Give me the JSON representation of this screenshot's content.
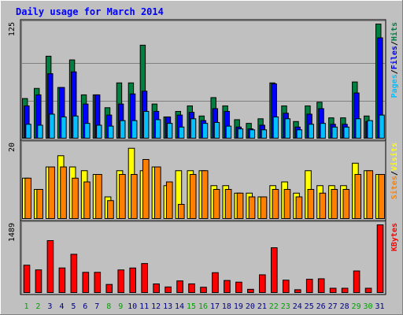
{
  "chart_data": {
    "type": "bar",
    "title": "Daily usage for March 2014",
    "categories": [
      "1",
      "2",
      "3",
      "4",
      "5",
      "6",
      "7",
      "8",
      "9",
      "10",
      "11",
      "12",
      "13",
      "14",
      "15",
      "16",
      "17",
      "18",
      "19",
      "20",
      "21",
      "22",
      "23",
      "24",
      "25",
      "26",
      "27",
      "28",
      "29",
      "30",
      "31"
    ],
    "weekend_days": [
      "1",
      "2",
      "8",
      "9",
      "15",
      "16",
      "22",
      "23",
      "29",
      "30"
    ],
    "panels": [
      {
        "id": "top",
        "ymax_label": "125",
        "ymax": 125,
        "right_label": [
          "Pages",
          "/",
          "Files",
          "/",
          "Hits"
        ],
        "right_label_colors": [
          "#00c0ff",
          "#000000",
          "#0000ff",
          "#000000",
          "#008040"
        ],
        "series": [
          {
            "name": "Hits",
            "color": "#008040",
            "values": [
              44,
              55,
              90,
              56,
              86,
              48,
              48,
              34,
              61,
              61,
              102,
              38,
              24,
              30,
              36,
              25,
              45,
              36,
              21,
              17,
              22,
              61,
              36,
              19,
              36,
              40,
              23,
              23,
              62,
              25,
              125
            ]
          },
          {
            "name": "Files",
            "color": "#0000ff",
            "values": [
              36,
              48,
              71,
              56,
              73,
              38,
              48,
              26,
              38,
              49,
              52,
              30,
              24,
              26,
              29,
              20,
              33,
              30,
              13,
              11,
              15,
              60,
              28,
              13,
              27,
              33,
              16,
              16,
              50,
              19,
              110
            ]
          },
          {
            "name": "Pages",
            "color": "#00c0ff",
            "values": [
              16,
              15,
              27,
              24,
              25,
              17,
              15,
              14,
              20,
              20,
              30,
              21,
              17,
              13,
              22,
              17,
              18,
              14,
              11,
              10,
              10,
              24,
              22,
              10,
              16,
              17,
              13,
              13,
              22,
              20,
              26
            ]
          }
        ]
      },
      {
        "id": "middle",
        "ymax_label": "20",
        "ymax": 20,
        "right_label": [
          "Sites",
          "/",
          "Visits"
        ],
        "right_label_colors": [
          "#ff8000",
          "#000000",
          "#ffff00"
        ],
        "series": [
          {
            "name": "Visits",
            "color": "#ffff00",
            "values": [
              11,
              8,
              14,
              17,
              14,
              13,
              12,
              6,
              13,
              19,
              13,
              14,
              9,
              13,
              13,
              13,
              9,
              9,
              7,
              7,
              6,
              9,
              10,
              7,
              13,
              9,
              9,
              9,
              15,
              13,
              12
            ]
          },
          {
            "name": "Sites",
            "color": "#ff8000",
            "values": [
              11,
              8,
              14,
              14,
              11,
              10,
              12,
              5,
              12,
              12,
              16,
              14,
              10,
              4,
              12,
              13,
              8,
              8,
              7,
              6,
              6,
              8,
              8,
              6,
              8,
              7,
              8,
              8,
              12,
              13,
              12
            ]
          }
        ]
      },
      {
        "id": "bottom",
        "ymax_label": "1489",
        "ymax": 1489,
        "right_label": [
          "KBytes"
        ],
        "right_label_colors": [
          "#ff0000"
        ],
        "series": [
          {
            "name": "KBytes",
            "color": "#ff0000",
            "values": [
              612,
              510,
              1146,
              552,
              849,
              457,
              457,
              194,
              509,
              551,
              648,
              205,
              139,
              271,
              206,
              133,
              450,
              280,
              244,
              88,
              403,
              991,
              287,
              79,
              306,
              317,
              111,
              111,
              487,
              111,
              1489
            ]
          }
        ]
      }
    ],
    "colors": {
      "background": "#c0c0c0",
      "title": "#0000ff",
      "weekday_label": "#000080",
      "weekend_label": "#00a000",
      "grid": "#808080"
    }
  }
}
